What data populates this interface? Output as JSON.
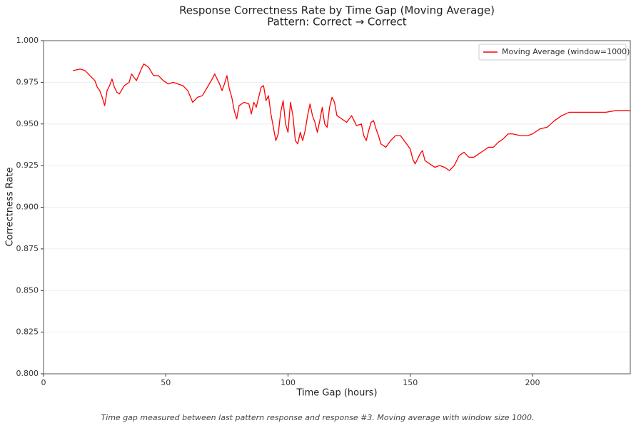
{
  "chart_data": {
    "type": "line",
    "title": "Response Correctness Rate by Time Gap (Moving Average)",
    "subtitle": "Pattern: Correct → Correct",
    "x_label": "Time Gap (hours)",
    "y_label": "Correctness Rate",
    "annotation": "Time gap measured between last pattern response and response #3. Moving average with window size 1000.",
    "xlim": [
      0,
      240
    ],
    "xticks": [
      0,
      50,
      100,
      150,
      200
    ],
    "ylim": [
      0.8,
      1.0
    ],
    "yticks": [
      {
        "value": 0.8,
        "label": "0.800"
      },
      {
        "value": 0.825,
        "label": "0.825"
      },
      {
        "value": 0.85,
        "label": "0.850"
      },
      {
        "value": 0.875,
        "label": "0.875"
      },
      {
        "value": 0.9,
        "label": "0.900"
      },
      {
        "value": 0.925,
        "label": "0.925"
      },
      {
        "value": 0.95,
        "label": "0.950"
      },
      {
        "value": 0.975,
        "label": "0.975"
      },
      {
        "value": 1.0,
        "label": "1.000"
      }
    ],
    "grid": true,
    "legend": "upper right",
    "x": [
      12,
      15,
      17,
      19,
      21,
      22,
      23,
      24,
      25,
      26,
      27,
      28,
      29,
      30,
      31,
      33,
      35,
      36,
      38,
      40,
      41,
      43,
      45,
      47,
      49,
      51,
      53,
      55,
      57,
      59,
      61,
      63,
      65,
      67,
      69,
      70,
      72,
      73,
      74,
      75,
      76,
      77,
      78,
      79,
      80,
      82,
      84,
      85,
      86,
      87,
      88,
      89,
      90,
      91,
      92,
      93,
      94,
      95,
      96,
      97,
      98,
      99,
      100,
      101,
      102,
      103,
      104,
      105,
      106,
      107,
      108,
      109,
      110,
      111,
      112,
      113,
      114,
      115,
      116,
      117,
      118,
      119,
      120,
      122,
      124,
      126,
      128,
      130,
      131,
      132,
      133,
      134,
      135,
      136,
      137,
      138,
      140,
      142,
      144,
      146,
      148,
      150,
      151,
      152,
      154,
      155,
      156,
      158,
      160,
      162,
      164,
      166,
      168,
      170,
      172,
      174,
      176,
      178,
      180,
      182,
      184,
      186,
      188,
      190,
      192,
      195,
      198,
      200,
      203,
      206,
      209,
      212,
      215,
      218,
      222,
      226,
      230,
      234,
      238,
      240
    ],
    "series": [
      {
        "name": "Moving Average (window=1000)",
        "color": "#ff0000",
        "values": [
          0.982,
          0.983,
          0.982,
          0.979,
          0.976,
          0.972,
          0.97,
          0.966,
          0.961,
          0.97,
          0.973,
          0.977,
          0.972,
          0.969,
          0.968,
          0.973,
          0.975,
          0.98,
          0.976,
          0.983,
          0.986,
          0.984,
          0.979,
          0.979,
          0.976,
          0.974,
          0.975,
          0.974,
          0.973,
          0.97,
          0.963,
          0.966,
          0.967,
          0.972,
          0.977,
          0.98,
          0.974,
          0.97,
          0.974,
          0.979,
          0.971,
          0.966,
          0.958,
          0.953,
          0.961,
          0.963,
          0.962,
          0.956,
          0.963,
          0.96,
          0.966,
          0.972,
          0.973,
          0.964,
          0.967,
          0.956,
          0.948,
          0.94,
          0.944,
          0.957,
          0.964,
          0.95,
          0.945,
          0.963,
          0.955,
          0.94,
          0.938,
          0.945,
          0.94,
          0.946,
          0.955,
          0.962,
          0.955,
          0.951,
          0.945,
          0.952,
          0.96,
          0.95,
          0.948,
          0.96,
          0.966,
          0.963,
          0.955,
          0.953,
          0.951,
          0.955,
          0.949,
          0.95,
          0.943,
          0.94,
          0.946,
          0.951,
          0.952,
          0.947,
          0.943,
          0.938,
          0.936,
          0.94,
          0.943,
          0.943,
          0.939,
          0.935,
          0.929,
          0.926,
          0.932,
          0.934,
          0.928,
          0.926,
          0.924,
          0.925,
          0.924,
          0.922,
          0.925,
          0.931,
          0.933,
          0.93,
          0.93,
          0.932,
          0.934,
          0.936,
          0.936,
          0.939,
          0.941,
          0.944,
          0.944,
          0.943,
          0.943,
          0.944,
          0.947,
          0.948,
          0.952,
          0.955,
          0.957,
          0.957,
          0.957,
          0.957,
          0.957,
          0.958,
          0.958,
          0.958
        ]
      }
    ]
  }
}
